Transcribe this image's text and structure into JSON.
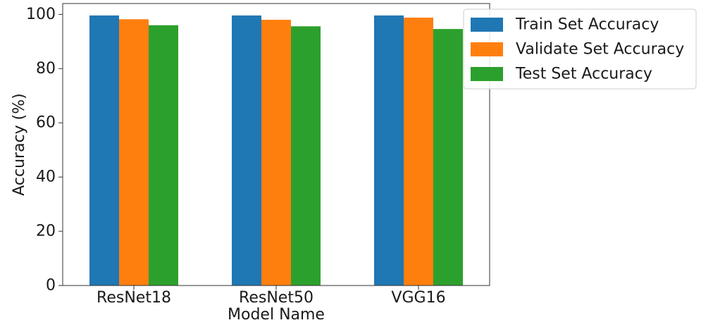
{
  "chart_data": {
    "type": "bar",
    "title": "",
    "xlabel": "Model Name",
    "ylabel": "Accuracy (%)",
    "categories": [
      "ResNet18",
      "ResNet50",
      "VGG16"
    ],
    "series": [
      {
        "name": "Train Set Accuracy",
        "color": "#1f77b4",
        "values": [
          99.6,
          99.6,
          99.6
        ]
      },
      {
        "name": "Validate Set Accuracy",
        "color": "#ff7f0e",
        "values": [
          98.2,
          98.0,
          98.8
        ]
      },
      {
        "name": "Test Set Accuracy",
        "color": "#2ca02c",
        "values": [
          96.0,
          95.6,
          94.6
        ]
      }
    ],
    "ylim": [
      0,
      104
    ],
    "yticks": [
      0,
      20,
      40,
      60,
      80,
      100
    ],
    "grid": false,
    "legend_position": "top-right"
  }
}
